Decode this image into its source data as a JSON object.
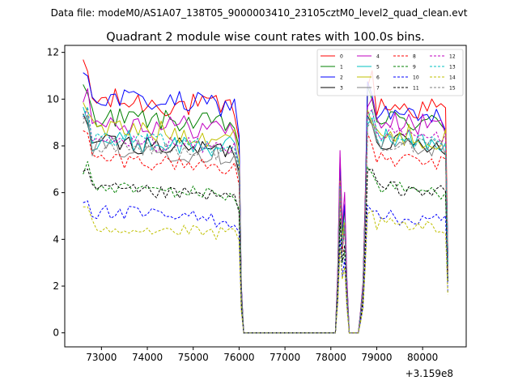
{
  "figure_header": "Data file: modeM0/AS1A07_138T05_9000003410_23105cztM0_level2_quad_clean.evt",
  "chart_data": {
    "type": "line",
    "title": "Quadrant 2 module wise count rates with 100.0s bins.",
    "xlabel": "",
    "ylabel": "",
    "x_offset_label": "+3.159e8",
    "xlim": [
      72200,
      80950
    ],
    "ylim": [
      -0.6,
      12.3
    ],
    "xticks": [
      73000,
      74000,
      75000,
      76000,
      77000,
      78000,
      79000,
      80000
    ],
    "yticks": [
      0,
      2,
      4,
      6,
      8,
      10,
      12
    ],
    "legend_position": "upper-right",
    "gaps": [
      [
        76100,
        78100
      ],
      [
        78400,
        78600
      ]
    ],
    "segments": [
      [
        72600,
        76100
      ],
      [
        78100,
        78400
      ],
      [
        78600,
        80550
      ]
    ],
    "series": [
      {
        "name": "0",
        "color": "#ff0000",
        "dashed": false,
        "level_a": 10.0,
        "level_b": 9.8,
        "spike": 7.3,
        "base": 0,
        "noise": 0.55
      },
      {
        "name": "1",
        "color": "#008000",
        "dashed": false,
        "level_a": 9.3,
        "level_b": 9.2,
        "spike": 7.0,
        "base": 0,
        "noise": 0.45
      },
      {
        "name": "2",
        "color": "#0000ff",
        "dashed": false,
        "level_a": 10.1,
        "level_b": 9.4,
        "spike": 7.5,
        "base": 0,
        "noise": 0.5
      },
      {
        "name": "3",
        "color": "#000000",
        "dashed": false,
        "level_a": 8.2,
        "level_b": 8.3,
        "spike": 6.2,
        "base": 0,
        "noise": 0.4
      },
      {
        "name": "4",
        "color": "#c000c0",
        "dashed": false,
        "level_a": 9.1,
        "level_b": 9.1,
        "spike": 7.8,
        "base": 0,
        "noise": 0.5
      },
      {
        "name": "5",
        "color": "#00c0c0",
        "dashed": false,
        "level_a": 8.3,
        "level_b": 8.4,
        "spike": 6.3,
        "base": 0,
        "noise": 0.5
      },
      {
        "name": "6",
        "color": "#c0c000",
        "dashed": false,
        "level_a": 8.8,
        "level_b": 8.6,
        "spike": 6.5,
        "base": 0,
        "noise": 0.5
      },
      {
        "name": "7",
        "color": "#808080",
        "dashed": false,
        "level_a": 8.0,
        "level_b": 8.2,
        "spike": 6.0,
        "base": 0,
        "noise": 0.45
      },
      {
        "name": "8",
        "color": "#ff0000",
        "dashed": true,
        "level_a": 7.5,
        "level_b": 7.5,
        "spike": 5.8,
        "base": 0,
        "noise": 0.35
      },
      {
        "name": "9",
        "color": "#008000",
        "dashed": true,
        "level_a": 6.3,
        "level_b": 6.3,
        "spike": 4.8,
        "base": 0,
        "noise": 0.3
      },
      {
        "name": "10",
        "color": "#0000ff",
        "dashed": true,
        "level_a": 5.2,
        "level_b": 5.0,
        "spike": 4.0,
        "base": 0,
        "noise": 0.35
      },
      {
        "name": "11",
        "color": "#000000",
        "dashed": true,
        "level_a": 6.2,
        "level_b": 6.3,
        "spike": 4.9,
        "base": 0,
        "noise": 0.3
      },
      {
        "name": "12",
        "color": "#c000c0",
        "dashed": true,
        "level_a": 8.3,
        "level_b": 8.6,
        "spike": 6.4,
        "base": 0,
        "noise": 0.35
      },
      {
        "name": "13",
        "color": "#00c0c0",
        "dashed": true,
        "level_a": 8.4,
        "level_b": 8.4,
        "spike": 6.3,
        "base": 0,
        "noise": 0.35
      },
      {
        "name": "14",
        "color": "#c0c000",
        "dashed": true,
        "level_a": 4.6,
        "level_b": 4.7,
        "spike": 3.6,
        "base": 0,
        "noise": 0.3
      },
      {
        "name": "15",
        "color": "#808080",
        "dashed": true,
        "level_a": 8.1,
        "level_b": 8.2,
        "spike": 6.1,
        "base": 0,
        "noise": 0.35
      }
    ]
  }
}
